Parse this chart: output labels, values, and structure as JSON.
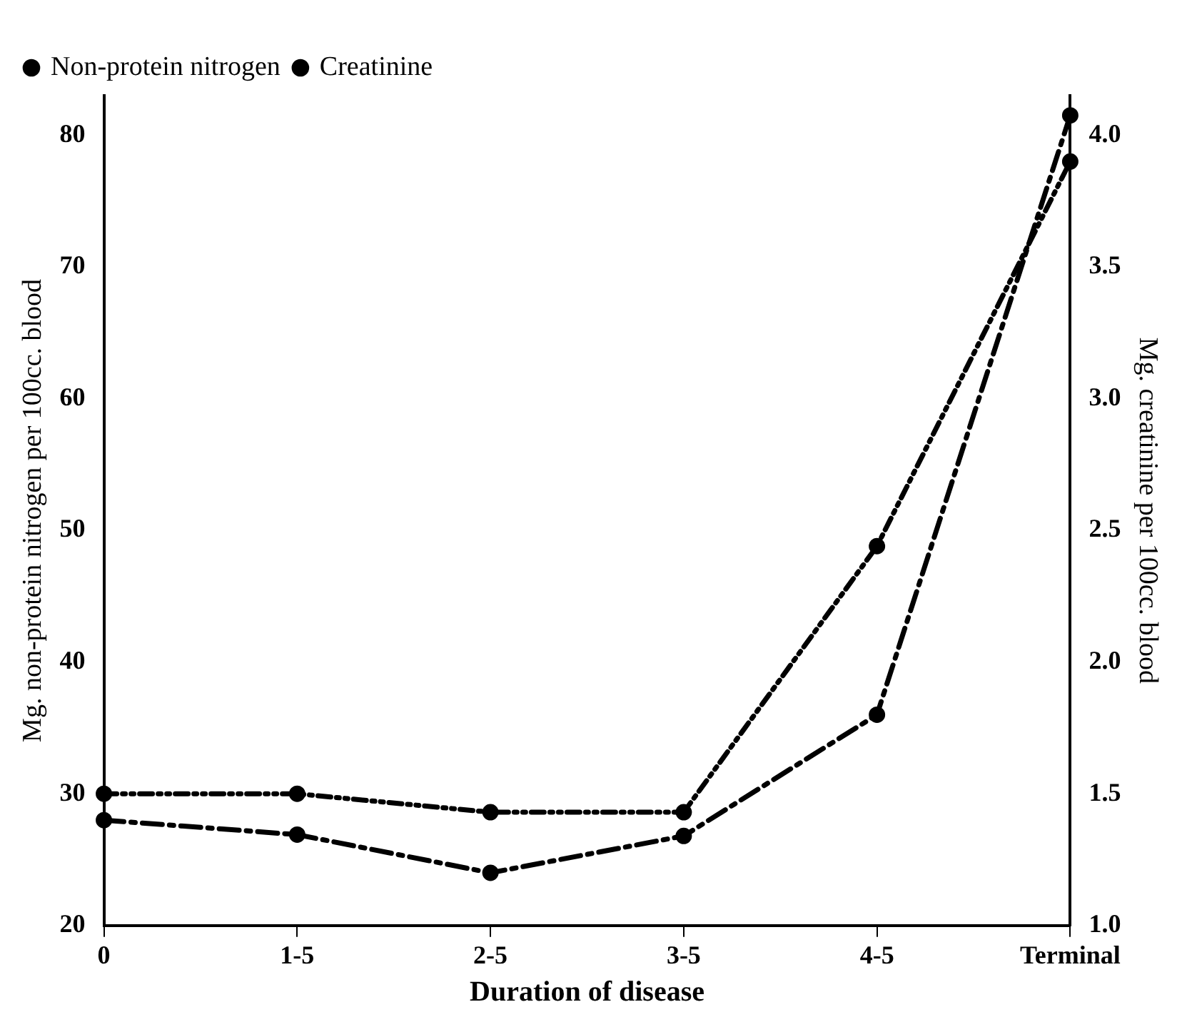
{
  "chart_data": {
    "type": "line",
    "xlabel": "Duration of disease",
    "ylabel": "Mg. non-protein nitrogen per 100cc. blood",
    "y2label": "Mg. creatinine per 100cc. blood",
    "categories": [
      "0",
      "1-5",
      "2-5",
      "3-5",
      "4-5",
      "Terminal"
    ],
    "series": [
      {
        "name": "Non-protein nitrogen",
        "color": "#000000",
        "line_style": "dashed",
        "values": [
          28,
          26.9,
          24,
          26.8,
          36,
          81.5
        ]
      },
      {
        "name": "Creatinine",
        "color": "#000000",
        "line_style": "dashed",
        "axis": "y2",
        "values": [
          1.5,
          1.5,
          1.43,
          1.43,
          2.44,
          3.9
        ]
      }
    ],
    "ylim": [
      20,
      83
    ],
    "yticks": [
      20,
      30,
      40,
      50,
      60,
      70,
      80
    ],
    "y2lim": [
      1.0,
      4.15
    ],
    "y2ticks": [
      {
        "value": 1.0,
        "label": "1.0"
      },
      {
        "value": 1.5,
        "label": "1.5"
      },
      {
        "value": 2.0,
        "label": "2.0"
      },
      {
        "value": 2.5,
        "label": "2.5"
      },
      {
        "value": 3.0,
        "label": "3.0"
      },
      {
        "value": 3.5,
        "label": "3.5"
      },
      {
        "value": 4.0,
        "label": "4.0"
      }
    ],
    "marker": "circle",
    "legend": "top left",
    "grid": false
  }
}
